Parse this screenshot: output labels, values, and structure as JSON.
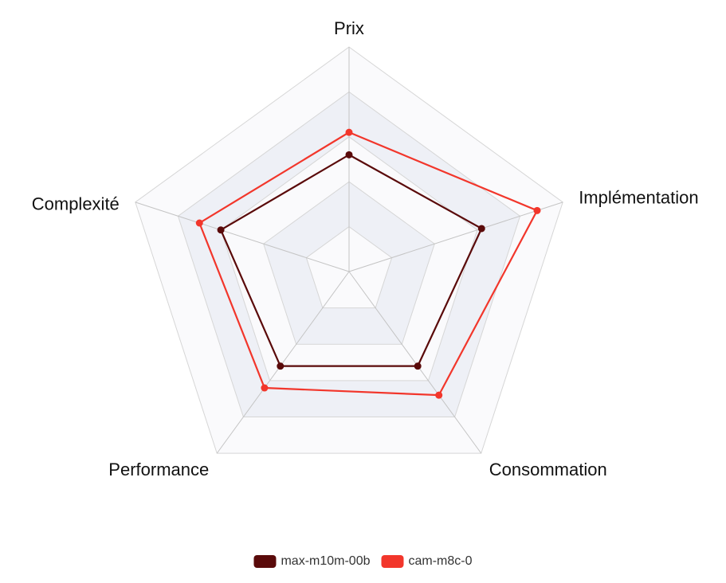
{
  "chart_data": {
    "type": "radar",
    "axes": [
      "Prix",
      "Implémentation",
      "Consommation",
      "Performance",
      "Complexité"
    ],
    "scale": {
      "min": 0,
      "max": 5,
      "levels": 5
    },
    "grid": true,
    "legend_position": "bottom-center",
    "series": [
      {
        "name": "max-m10m-00b",
        "color": "#5a0a0a",
        "values": [
          2.6,
          3.1,
          2.6,
          2.6,
          3.0
        ]
      },
      {
        "name": "cam-m8c-0",
        "color": "#f2362b",
        "values": [
          3.1,
          4.4,
          3.4,
          3.2,
          3.5
        ]
      }
    ],
    "colors": {
      "grid_line": "#d6d6d6",
      "axis_line": "#c4c4c4",
      "band_fill_alt": "#eef0f6",
      "band_fill": "#fafafc"
    }
  }
}
